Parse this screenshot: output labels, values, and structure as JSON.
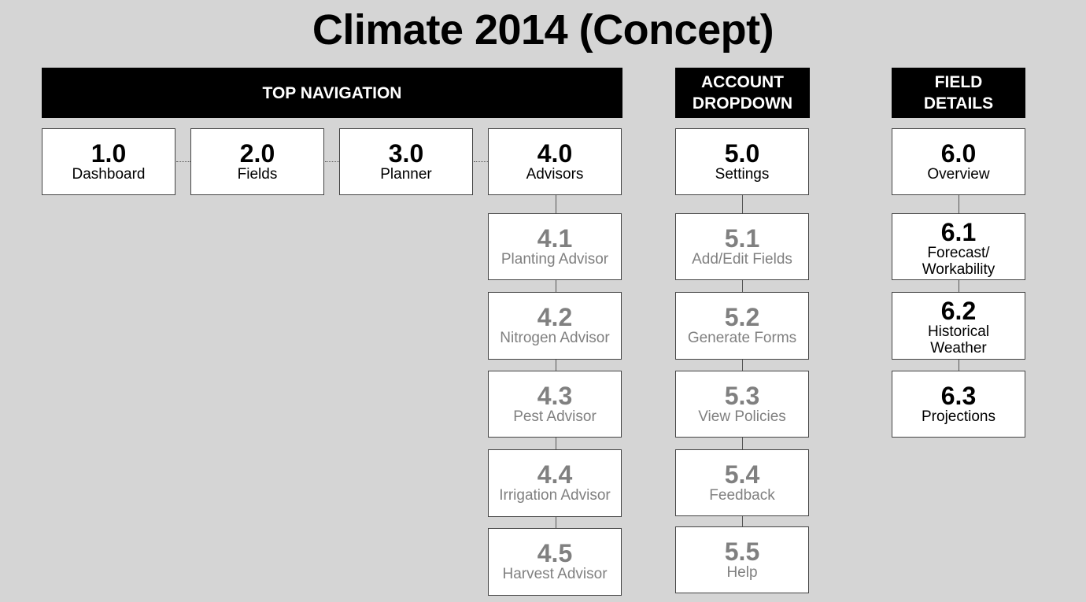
{
  "title": "Climate 2014 (Concept)",
  "headers": {
    "top_navigation": "TOP NAVIGATION",
    "account_dropdown": "ACCOUNT\nDROPDOWN",
    "field_details": "FIELD\nDETAILS"
  },
  "nodes": [
    {
      "id": "1.0",
      "label": "Dashboard",
      "state": "active"
    },
    {
      "id": "2.0",
      "label": "Fields",
      "state": "active"
    },
    {
      "id": "3.0",
      "label": "Planner",
      "state": "active"
    },
    {
      "id": "4.0",
      "label": "Advisors",
      "state": "active"
    },
    {
      "id": "4.1",
      "label": "Planting Advisor",
      "state": "inactive"
    },
    {
      "id": "4.2",
      "label": "Nitrogen Advisor",
      "state": "inactive"
    },
    {
      "id": "4.3",
      "label": "Pest Advisor",
      "state": "inactive"
    },
    {
      "id": "4.4",
      "label": "Irrigation Advisor",
      "state": "inactive"
    },
    {
      "id": "4.5",
      "label": "Harvest Advisor",
      "state": "inactive"
    },
    {
      "id": "5.0",
      "label": "Settings",
      "state": "active"
    },
    {
      "id": "5.1",
      "label": "Add/Edit Fields",
      "state": "inactive"
    },
    {
      "id": "5.2",
      "label": "Generate Forms",
      "state": "inactive"
    },
    {
      "id": "5.3",
      "label": "View Policies",
      "state": "inactive"
    },
    {
      "id": "5.4",
      "label": "Feedback",
      "state": "inactive"
    },
    {
      "id": "5.5",
      "label": "Help",
      "state": "inactive"
    },
    {
      "id": "6.0",
      "label": "Overview",
      "state": "active"
    },
    {
      "id": "6.1",
      "label": "Forecast/\nWorkability",
      "state": "active"
    },
    {
      "id": "6.2",
      "label": "Historical\nWeather",
      "state": "active"
    },
    {
      "id": "6.3",
      "label": "Projections",
      "state": "active"
    }
  ],
  "colors": {
    "background": "#d5d5d5",
    "header": "#000000",
    "active_text": "#000000",
    "inactive_text": "#808080"
  }
}
